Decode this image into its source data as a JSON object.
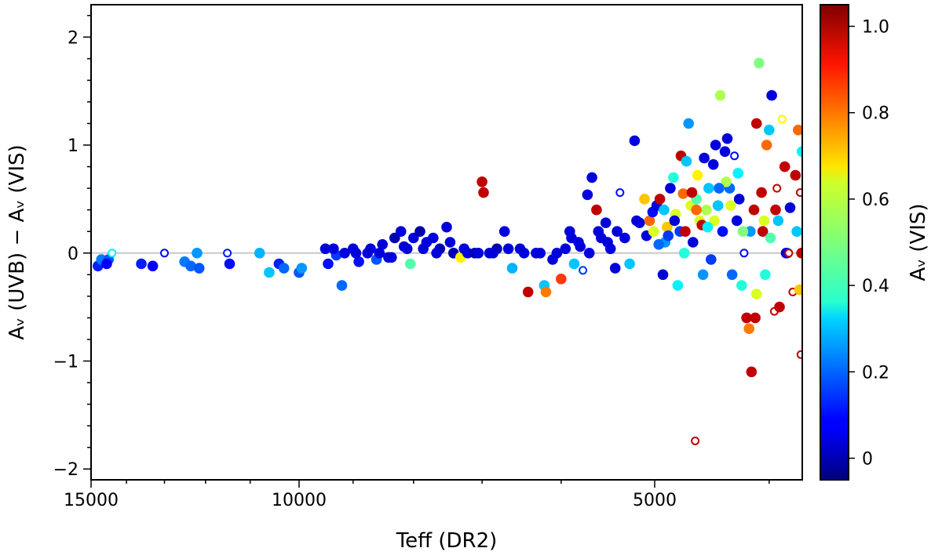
{
  "chart_data": {
    "type": "scatter",
    "xlabel": "Teff (DR2)",
    "ylabel": "Aᵥ (UVB)  −  Aᵥ (VIS)",
    "xscale": "log",
    "xlim": [
      15000,
      3750
    ],
    "ylim": [
      -2.1,
      2.3
    ],
    "x_tick_labels": [
      {
        "value": 15000,
        "label": "15000"
      },
      {
        "value": 10000,
        "label": "10000"
      },
      {
        "value": 5000,
        "label": "5000"
      }
    ],
    "y_ticks": [
      2,
      1,
      0,
      -1,
      -2
    ],
    "y_tick_labels": [
      "2",
      "1",
      "0",
      "−1",
      "−2"
    ],
    "reference_line": 0,
    "colorbar": {
      "label": "Aᵥ (VIS)",
      "range": [
        -0.05,
        1.05
      ],
      "ticks": [
        0,
        0.2,
        0.4,
        0.6,
        0.8,
        1.0
      ],
      "tick_labels": [
        "0",
        "0.2",
        "0.4",
        "0.6",
        "0.8",
        "1.0"
      ],
      "colormap": "jet"
    },
    "points": [
      [
        14800,
        -0.12,
        0.12,
        "f"
      ],
      [
        14700,
        -0.06,
        0.22,
        "f"
      ],
      [
        14500,
        -0.06,
        0.18,
        "f"
      ],
      [
        14400,
        0.0,
        0.35,
        "o"
      ],
      [
        14550,
        -0.1,
        0.08,
        "f"
      ],
      [
        13600,
        -0.1,
        0.12,
        "f"
      ],
      [
        13300,
        -0.12,
        0.08,
        "f"
      ],
      [
        13000,
        0.0,
        0.1,
        "o"
      ],
      [
        12500,
        -0.08,
        0.22,
        "f"
      ],
      [
        12350,
        -0.12,
        0.2,
        "f"
      ],
      [
        12200,
        0.0,
        0.25,
        "f"
      ],
      [
        12150,
        -0.14,
        0.18,
        "f"
      ],
      [
        11500,
        0.0,
        0.12,
        "o"
      ],
      [
        11450,
        -0.1,
        0.1,
        "f"
      ],
      [
        10800,
        0.0,
        0.28,
        "f"
      ],
      [
        10600,
        -0.18,
        0.3,
        "f"
      ],
      [
        10400,
        -0.1,
        0.12,
        "f"
      ],
      [
        10300,
        -0.14,
        0.2,
        "f"
      ],
      [
        10000,
        -0.18,
        0.18,
        "f"
      ],
      [
        9950,
        -0.14,
        0.25,
        "f"
      ],
      [
        9500,
        0.04,
        0.05,
        "f"
      ],
      [
        9450,
        -0.1,
        0.1,
        "f"
      ],
      [
        9300,
        -0.02,
        0.15,
        "f"
      ],
      [
        9200,
        -0.3,
        0.2,
        "f"
      ],
      [
        9000,
        0.04,
        0.05,
        "f"
      ],
      [
        8900,
        -0.08,
        0.1,
        "f"
      ],
      [
        8700,
        0.04,
        0.05,
        "f"
      ],
      [
        8600,
        -0.06,
        0.18,
        "f"
      ],
      [
        8500,
        0.08,
        0.05,
        "f"
      ],
      [
        8400,
        -0.04,
        0.05,
        "f"
      ],
      [
        8300,
        0.14,
        0.0,
        "f"
      ],
      [
        8200,
        0.2,
        0.05,
        "f"
      ],
      [
        8100,
        0.04,
        0.05,
        "f"
      ],
      [
        8050,
        -0.1,
        0.45,
        "f"
      ],
      [
        8000,
        0.14,
        0.05,
        "f"
      ],
      [
        7900,
        0.2,
        0.0,
        "f"
      ],
      [
        7800,
        0.1,
        0.05,
        "f"
      ],
      [
        7700,
        0.14,
        0.05,
        "f"
      ],
      [
        7600,
        0.04,
        0.0,
        "f"
      ],
      [
        7500,
        0.24,
        0.05,
        "f"
      ],
      [
        7400,
        0.0,
        0.0,
        "f"
      ],
      [
        7300,
        -0.04,
        0.65,
        "f"
      ],
      [
        7200,
        0.0,
        0.05,
        "f"
      ],
      [
        7100,
        0.0,
        0.0,
        "f"
      ],
      [
        7000,
        0.66,
        0.98,
        "f"
      ],
      [
        6980,
        0.56,
        0.98,
        "f"
      ],
      [
        6900,
        0.0,
        0.05,
        "f"
      ],
      [
        6800,
        0.04,
        0.0,
        "f"
      ],
      [
        6700,
        0.2,
        0.05,
        "f"
      ],
      [
        6600,
        -0.14,
        0.28,
        "f"
      ],
      [
        6500,
        0.04,
        0.05,
        "f"
      ],
      [
        6400,
        -0.36,
        0.98,
        "f"
      ],
      [
        6300,
        0.0,
        0.05,
        "f"
      ],
      [
        6200,
        -0.3,
        0.3,
        "f"
      ],
      [
        6180,
        -0.36,
        0.78,
        "f"
      ],
      [
        6100,
        -0.06,
        0.05,
        "f"
      ],
      [
        6000,
        -0.24,
        0.85,
        "f"
      ],
      [
        5950,
        0.04,
        0.05,
        "f"
      ],
      [
        5900,
        0.2,
        0.05,
        "f"
      ],
      [
        5850,
        -0.1,
        0.3,
        "f"
      ],
      [
        5800,
        0.1,
        0.05,
        "f"
      ],
      [
        5750,
        -0.16,
        0.15,
        "o"
      ],
      [
        5700,
        0.54,
        0.05,
        "f"
      ],
      [
        5650,
        0.7,
        0.05,
        "f"
      ],
      [
        5600,
        0.4,
        0.98,
        "f"
      ],
      [
        5550,
        0.14,
        0.05,
        "f"
      ],
      [
        5500,
        0.28,
        0.05,
        "f"
      ],
      [
        5450,
        0.04,
        0.05,
        "f"
      ],
      [
        5400,
        -0.14,
        0.05,
        "f"
      ],
      [
        5350,
        0.56,
        0.1,
        "o"
      ],
      [
        5300,
        0.14,
        0.05,
        "f"
      ],
      [
        5250,
        -0.1,
        0.3,
        "f"
      ],
      [
        5200,
        1.04,
        0.05,
        "f"
      ],
      [
        5150,
        0.28,
        0.05,
        "f"
      ],
      [
        5100,
        0.5,
        0.7,
        "f"
      ],
      [
        5050,
        0.3,
        0.8,
        "f"
      ],
      [
        5020,
        0.38,
        0.1,
        "f"
      ],
      [
        4980,
        0.44,
        0.05,
        "f"
      ],
      [
        4950,
        0.5,
        0.98,
        "f"
      ],
      [
        4920,
        -0.2,
        0.05,
        "f"
      ],
      [
        4900,
        0.1,
        0.25,
        "f"
      ],
      [
        4880,
        0.24,
        0.7,
        "f"
      ],
      [
        4850,
        0.6,
        0.05,
        "f"
      ],
      [
        4820,
        0.7,
        0.4,
        "f"
      ],
      [
        4800,
        0.36,
        0.6,
        "f"
      ],
      [
        4780,
        -0.3,
        0.35,
        "f"
      ],
      [
        4760,
        0.2,
        0.15,
        "f"
      ],
      [
        4750,
        0.9,
        0.98,
        "f"
      ],
      [
        4730,
        0.55,
        0.8,
        "f"
      ],
      [
        4700,
        0.85,
        0.3,
        "f"
      ],
      [
        4680,
        1.2,
        0.25,
        "f"
      ],
      [
        4660,
        0.44,
        0.6,
        "f"
      ],
      [
        4640,
        0.1,
        0.05,
        "f"
      ],
      [
        4620,
        -1.74,
        0.98,
        "o"
      ],
      [
        4610,
        0.5,
        0.45,
        "f"
      ],
      [
        4600,
        0.72,
        0.65,
        "f"
      ],
      [
        4580,
        0.3,
        0.6,
        "f"
      ],
      [
        4560,
        0.26,
        0.98,
        "f"
      ],
      [
        4540,
        0.88,
        0.05,
        "f"
      ],
      [
        4520,
        0.4,
        0.55,
        "f"
      ],
      [
        4500,
        0.6,
        0.3,
        "f"
      ],
      [
        4480,
        -0.06,
        0.15,
        "f"
      ],
      [
        4460,
        0.82,
        0.05,
        "f"
      ],
      [
        4440,
        1.0,
        0.05,
        "f"
      ],
      [
        4420,
        0.44,
        0.3,
        "f"
      ],
      [
        4400,
        1.46,
        0.55,
        "f"
      ],
      [
        4380,
        0.2,
        0.1,
        "f"
      ],
      [
        4360,
        0.94,
        0.05,
        "f"
      ],
      [
        4340,
        1.06,
        0.05,
        "f"
      ],
      [
        4320,
        0.6,
        0.2,
        "f"
      ],
      [
        4300,
        -0.2,
        0.2,
        "f"
      ],
      [
        4280,
        0.9,
        0.1,
        "o"
      ],
      [
        4260,
        0.3,
        0.05,
        "f"
      ],
      [
        4240,
        0.5,
        0.05,
        "f"
      ],
      [
        4220,
        -0.3,
        0.4,
        "f"
      ],
      [
        4200,
        0.0,
        0.1,
        "o"
      ],
      [
        4180,
        -0.6,
        0.98,
        "f"
      ],
      [
        4160,
        -0.7,
        0.78,
        "f"
      ],
      [
        4140,
        -1.1,
        0.98,
        "f"
      ],
      [
        4120,
        0.4,
        0.98,
        "f"
      ],
      [
        4100,
        1.2,
        0.98,
        "f"
      ],
      [
        4080,
        1.76,
        0.5,
        "f"
      ],
      [
        4060,
        0.56,
        0.98,
        "f"
      ],
      [
        4040,
        0.3,
        0.6,
        "f"
      ],
      [
        4020,
        1.0,
        0.8,
        "f"
      ],
      [
        4000,
        1.14,
        0.3,
        "f"
      ],
      [
        3980,
        1.46,
        0.05,
        "f"
      ],
      [
        3960,
        -0.54,
        0.98,
        "o"
      ],
      [
        3940,
        0.6,
        0.98,
        "o"
      ],
      [
        3920,
        -0.5,
        0.98,
        "f"
      ],
      [
        3900,
        1.24,
        0.65,
        "o"
      ],
      [
        3880,
        0.8,
        0.98,
        "f"
      ],
      [
        3860,
        0.0,
        0.25,
        "f"
      ],
      [
        3840,
        0.42,
        0.05,
        "f"
      ],
      [
        3820,
        -0.36,
        0.98,
        "o"
      ],
      [
        3800,
        0.72,
        0.98,
        "f"
      ],
      [
        3790,
        0.2,
        0.3,
        "f"
      ],
      [
        3780,
        1.14,
        0.8,
        "f"
      ],
      [
        3770,
        -0.34,
        0.7,
        "f"
      ],
      [
        3765,
        0.56,
        0.98,
        "o"
      ],
      [
        3760,
        -0.94,
        0.98,
        "o"
      ],
      [
        3755,
        0.0,
        0.98,
        "f"
      ],
      [
        3752,
        0.94,
        0.35,
        "f"
      ],
      [
        3870,
        0.0,
        0.05,
        "f"
      ],
      [
        3850,
        0.0,
        0.98,
        "o"
      ],
      [
        4150,
        0.2,
        0.25,
        "f"
      ],
      [
        4250,
        0.74,
        0.35,
        "f"
      ],
      [
        4350,
        0.66,
        0.55,
        "f"
      ],
      [
        4450,
        0.3,
        0.6,
        "f"
      ],
      [
        4550,
        -0.2,
        0.25,
        "f"
      ],
      [
        4650,
        0.56,
        0.98,
        "f"
      ],
      [
        4720,
        0.0,
        0.4,
        "f"
      ],
      [
        4870,
        0.16,
        0.15,
        "f"
      ],
      [
        4960,
        0.08,
        0.2,
        "f"
      ],
      [
        5080,
        0.16,
        0.05,
        "f"
      ],
      [
        5180,
        0.3,
        0.05,
        "f"
      ],
      [
        5380,
        0.2,
        0.05,
        "f"
      ],
      [
        5480,
        0.1,
        0.05,
        "f"
      ],
      [
        5580,
        0.2,
        0.05,
        "f"
      ],
      [
        5680,
        0.0,
        0.05,
        "f"
      ],
      [
        5780,
        0.06,
        0.05,
        "f"
      ],
      [
        5880,
        0.14,
        0.05,
        "f"
      ],
      [
        6050,
        0.0,
        0.05,
        "f"
      ],
      [
        6250,
        0.0,
        0.05,
        "f"
      ],
      [
        6450,
        0.0,
        0.05,
        "f"
      ],
      [
        6650,
        0.04,
        0.05,
        "f"
      ],
      [
        6850,
        0.0,
        0.05,
        "f"
      ],
      [
        7050,
        0.0,
        0.05,
        "f"
      ],
      [
        7250,
        0.04,
        0.05,
        "f"
      ],
      [
        7450,
        0.1,
        0.05,
        "f"
      ],
      [
        7650,
        0.0,
        0.05,
        "f"
      ],
      [
        7850,
        0.04,
        0.05,
        "f"
      ],
      [
        8150,
        0.06,
        0.05,
        "f"
      ],
      [
        8350,
        -0.04,
        0.05,
        "f"
      ],
      [
        8550,
        0.0,
        0.05,
        "f"
      ],
      [
        8750,
        0.0,
        0.05,
        "f"
      ],
      [
        8950,
        0.0,
        0.05,
        "f"
      ],
      [
        9150,
        0.0,
        0.05,
        "f"
      ],
      [
        9350,
        0.04,
        0.05,
        "f"
      ],
      [
        4100,
        -0.38,
        0.6,
        "f"
      ],
      [
        4050,
        0.2,
        0.98,
        "f"
      ],
      [
        3950,
        0.4,
        0.98,
        "f"
      ],
      [
        4030,
        -0.2,
        0.4,
        "f"
      ],
      [
        4110,
        -0.6,
        0.98,
        "f"
      ],
      [
        4210,
        0.2,
        0.5,
        "f"
      ],
      [
        4310,
        0.44,
        0.6,
        "f"
      ],
      [
        4410,
        0.6,
        0.2,
        "f"
      ],
      [
        4510,
        0.24,
        0.35,
        "f"
      ],
      [
        4610,
        0.4,
        0.8,
        "f"
      ],
      [
        4710,
        0.2,
        0.98,
        "f"
      ],
      [
        4810,
        0.3,
        0.05,
        "f"
      ],
      [
        4910,
        0.4,
        0.3,
        "f"
      ],
      [
        5010,
        0.2,
        0.6,
        "f"
      ],
      [
        3930,
        0.3,
        0.3,
        "f"
      ],
      [
        3990,
        0.14,
        0.45,
        "f"
      ]
    ]
  }
}
